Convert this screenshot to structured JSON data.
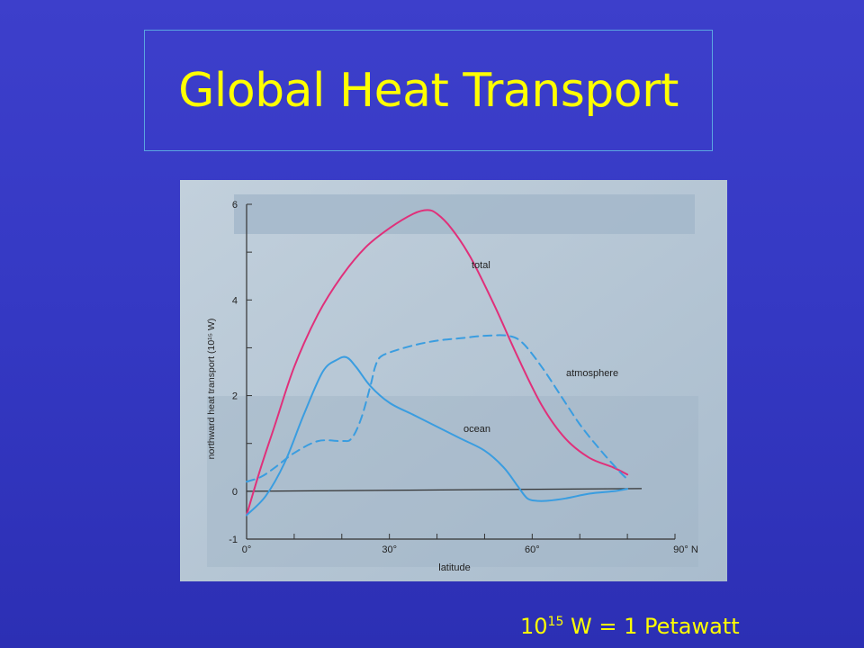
{
  "slide": {
    "title": "Global Heat Transport",
    "footnote": {
      "base": "10",
      "exponent": "15",
      "rest": " W = 1 Petawatt"
    }
  },
  "colors": {
    "background": "#3539c4",
    "title": "#ffff00",
    "total": "#e0307a",
    "ocean": "#3a9de0",
    "atmosphere": "#3a9de0",
    "axis": "#333333",
    "paper": "#b4c6d6"
  },
  "chart_data": {
    "type": "line",
    "xlabel": "latitude",
    "ylabel": "northward heat transport (10¹⁵ W)",
    "xlim": [
      0,
      90
    ],
    "ylim": [
      -1,
      6
    ],
    "x_ticks": [
      "0°",
      "30°",
      "60°",
      "90° N"
    ],
    "y_ticks": [
      "-1",
      "0",
      "2",
      "4",
      "6"
    ],
    "series": [
      {
        "name": "total",
        "style": "solid",
        "color": "#e0307a",
        "x": [
          0,
          3,
          6,
          10,
          15,
          20,
          25,
          30,
          35,
          38,
          40,
          43,
          47,
          52,
          57,
          62,
          67,
          72,
          77,
          80
        ],
        "y": [
          -0.5,
          0.5,
          1.4,
          2.6,
          3.7,
          4.5,
          5.1,
          5.5,
          5.8,
          5.88,
          5.8,
          5.5,
          4.9,
          3.9,
          2.8,
          1.8,
          1.1,
          0.7,
          0.5,
          0.35
        ]
      },
      {
        "name": "ocean",
        "style": "solid",
        "color": "#3a9de0",
        "x": [
          0,
          4,
          8,
          12,
          16,
          19,
          21,
          23,
          26,
          30,
          35,
          40,
          45,
          50,
          54,
          57,
          59,
          61,
          63,
          67,
          72,
          77,
          80
        ],
        "y": [
          -0.5,
          -0.1,
          0.6,
          1.6,
          2.5,
          2.75,
          2.8,
          2.6,
          2.2,
          1.85,
          1.6,
          1.35,
          1.1,
          0.85,
          0.5,
          0.1,
          -0.15,
          -0.2,
          -0.2,
          -0.15,
          -0.05,
          0.0,
          0.05
        ]
      },
      {
        "name": "atmosphere",
        "style": "dashed",
        "color": "#3a9de0",
        "x": [
          0,
          3,
          6,
          10,
          15,
          20,
          22,
          24,
          26,
          27,
          28,
          30,
          35,
          40,
          45,
          50,
          55,
          58,
          62,
          66,
          70,
          74,
          78,
          80
        ],
        "y": [
          0.2,
          0.3,
          0.5,
          0.8,
          1.05,
          1.05,
          1.1,
          1.5,
          2.2,
          2.6,
          2.8,
          2.9,
          3.05,
          3.15,
          3.2,
          3.25,
          3.25,
          3.1,
          2.6,
          2.0,
          1.4,
          0.9,
          0.45,
          0.25
        ]
      }
    ],
    "annotations": [
      "total",
      "ocean",
      "atmosphere"
    ]
  }
}
